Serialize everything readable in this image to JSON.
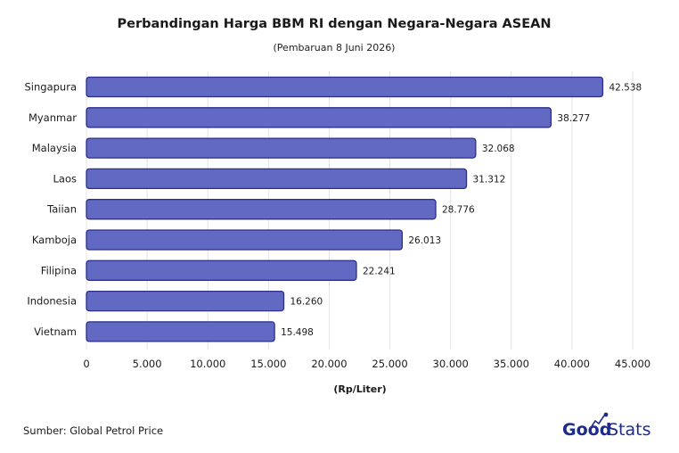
{
  "chart_data": {
    "type": "bar",
    "orientation": "horizontal",
    "title": "Perbandingan Harga BBM RI dengan Negara-Negara ASEAN",
    "subtitle": "(Pembaruan 8 Juni 2026)",
    "xlabel": "(Rp/Liter)",
    "ylabel": "",
    "categories": [
      "Singapura",
      "Myanmar",
      "Malaysia",
      "Laos",
      "Taiian",
      "Kamboja",
      "Filipina",
      "Indonesia",
      "Vietnam"
    ],
    "values": [
      42538,
      38277,
      32068,
      31312,
      28776,
      26013,
      22241,
      16260,
      15498
    ],
    "value_labels": [
      "42.538",
      "38.277",
      "32.068",
      "31.312",
      "28.776",
      "26.013",
      "22.241",
      "16.260",
      "15.498"
    ],
    "xlim": [
      0,
      45000
    ],
    "xticks": [
      0,
      5000,
      10000,
      15000,
      20000,
      25000,
      30000,
      35000,
      40000,
      45000
    ],
    "xtick_labels": [
      "0",
      "5.000",
      "10.000",
      "15.000",
      "20.000",
      "25.000",
      "30.000",
      "35.000",
      "40.000",
      "45.000"
    ],
    "grid": true,
    "bar_color": "#6269c2",
    "bar_edge_color": "#2c2f8c"
  },
  "footer": {
    "source": "Sumber: Global Petrol Price",
    "logo_good": "Good",
    "logo_stats": "Stats"
  },
  "colors": {
    "logo": "#1f2b8a",
    "grid": "#e3e3e3"
  }
}
